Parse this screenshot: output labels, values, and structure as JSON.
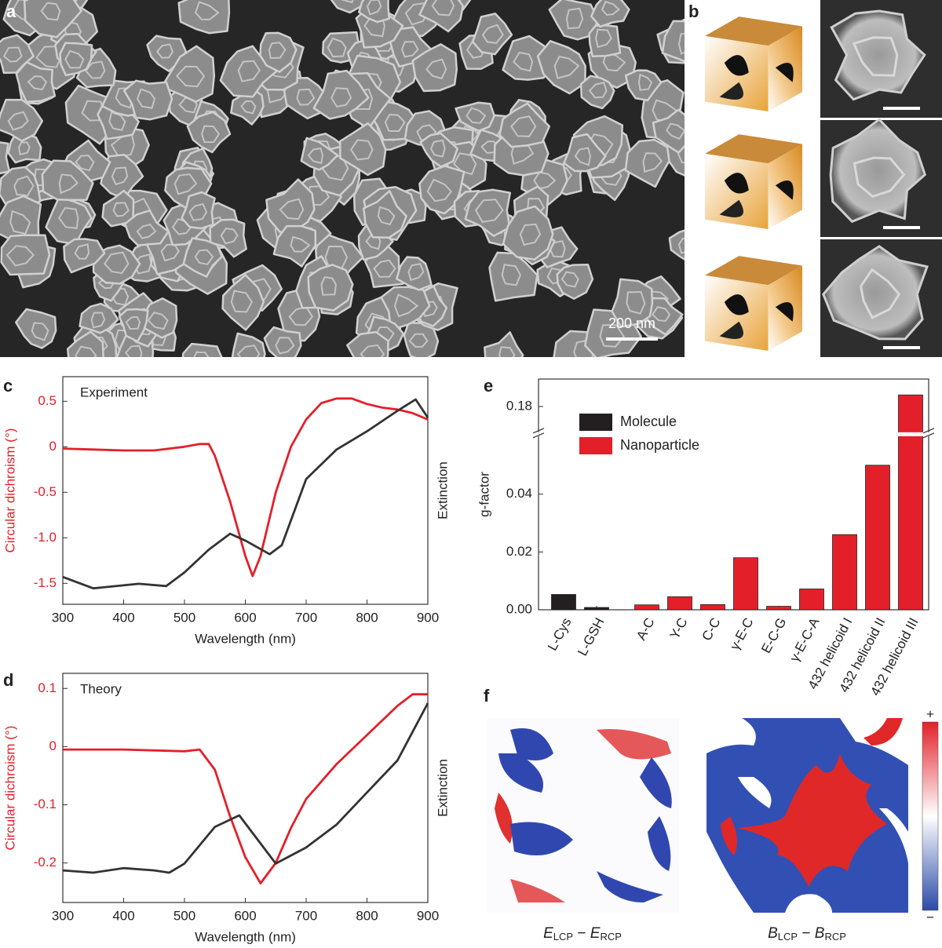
{
  "figure": {
    "panel_labels": [
      "a",
      "b",
      "c",
      "d",
      "e",
      "f"
    ],
    "scale_bar": "200 nm",
    "f": {
      "left": {
        "a": "E",
        "a_sub": "LCP",
        "minus": " − ",
        "b": "E",
        "b_sub": "RCP"
      },
      "right": {
        "a": "B",
        "a_sub": "LCP",
        "minus": " − ",
        "b": "B",
        "b_sub": "RCP"
      },
      "colorbar_max": "+",
      "colorbar_min": "−"
    }
  },
  "chart_data": [
    {
      "type": "line",
      "annotation": "Experiment",
      "xlabel": "Wavelength (nm)",
      "ylabel": "Circular dichroism (°)",
      "y2label": "Extinction",
      "xlim": [
        300,
        900
      ],
      "xticks": [
        300,
        400,
        500,
        600,
        700,
        800,
        900
      ],
      "ylim": [
        -1.73,
        0.77
      ],
      "yticks": [
        0.5,
        0,
        -0.5,
        {
          "value": -1,
          "label": "-1.0"
        },
        -1.5
      ],
      "y2lim": [
        0,
        1
      ],
      "series": [
        {
          "color": "#e3202a",
          "x": [
            300,
            350,
            400,
            450,
            500,
            525,
            540,
            550,
            575,
            600,
            612,
            625,
            650,
            675,
            700,
            725,
            750,
            775,
            800,
            825,
            850,
            875,
            900
          ],
          "values": [
            -0.02,
            -0.03,
            -0.04,
            -0.04,
            0.0,
            0.03,
            0.03,
            -0.1,
            -0.6,
            -1.2,
            -1.42,
            -1.2,
            -0.5,
            0.0,
            0.3,
            0.48,
            0.53,
            0.53,
            0.47,
            0.43,
            0.41,
            0.37,
            0.3
          ]
        },
        {
          "color": "#333333",
          "axis": "y2",
          "x": [
            300,
            350,
            425,
            470,
            500,
            540,
            575,
            600,
            640,
            660,
            700,
            750,
            800,
            850,
            880,
            900
          ],
          "values": [
            0.12,
            0.07,
            0.09,
            0.08,
            0.14,
            0.24,
            0.31,
            0.28,
            0.22,
            0.26,
            0.55,
            0.68,
            0.76,
            0.85,
            0.9,
            0.82
          ]
        }
      ]
    },
    {
      "type": "line",
      "annotation": "Theory",
      "xlabel": "Wavelength (nm)",
      "ylabel": "Circular dichroism (°)",
      "y2label": "Extinction",
      "xlim": [
        300,
        900
      ],
      "xticks": [
        300,
        400,
        500,
        600,
        700,
        800,
        900
      ],
      "ylim": [
        -0.268,
        0.126
      ],
      "yticks": [
        0.1,
        0,
        -0.1,
        -0.2
      ],
      "y2lim": [
        0,
        1
      ],
      "series": [
        {
          "color": "#e3202a",
          "x": [
            300,
            400,
            500,
            525,
            550,
            575,
            600,
            625,
            650,
            675,
            700,
            750,
            800,
            850,
            875,
            900
          ],
          "values": [
            -0.005,
            -0.005,
            -0.008,
            -0.005,
            -0.04,
            -0.12,
            -0.19,
            -0.235,
            -0.2,
            -0.14,
            -0.09,
            -0.03,
            0.02,
            0.07,
            0.09,
            0.09
          ]
        },
        {
          "color": "#333333",
          "axis": "y2",
          "x": [
            300,
            350,
            400,
            450,
            475,
            500,
            550,
            590,
            610,
            650,
            700,
            750,
            800,
            850,
            900
          ],
          "values": [
            0.14,
            0.13,
            0.15,
            0.14,
            0.13,
            0.17,
            0.33,
            0.38,
            0.31,
            0.17,
            0.24,
            0.34,
            0.48,
            0.62,
            0.87
          ]
        }
      ]
    },
    {
      "type": "bar",
      "ylabel": "g-factor",
      "categories": [
        "L-Cys",
        "L-GSH",
        "A-C",
        "Y-C",
        "C-C",
        "γ-E-C",
        "E-C-G",
        "γ-E-C-A",
        "432 helicoid I",
        "432 helicoid II",
        "432 helicoid III"
      ],
      "ylim": [
        0,
        0.1895
      ],
      "axis_break": [
        0.0603,
        0.17
      ],
      "yticks": [
        {
          "value": 0,
          "label": "0.00"
        },
        {
          "value": 0.02,
          "label": "0.02"
        },
        {
          "value": 0.04,
          "label": "0.04"
        },
        0.18
      ],
      "legend": "upper left",
      "series": [
        {
          "name": "Molecule",
          "color": "#231f20",
          "values": [
            0.0053,
            0.0008,
            null,
            null,
            null,
            null,
            null,
            null,
            null,
            null,
            null
          ]
        },
        {
          "name": "Nanoparticle",
          "color": "#e3202a",
          "values": [
            null,
            null,
            0.0017,
            0.0045,
            0.0018,
            0.018,
            0.0012,
            0.0072,
            0.026,
            0.05,
            0.184
          ]
        }
      ]
    }
  ]
}
